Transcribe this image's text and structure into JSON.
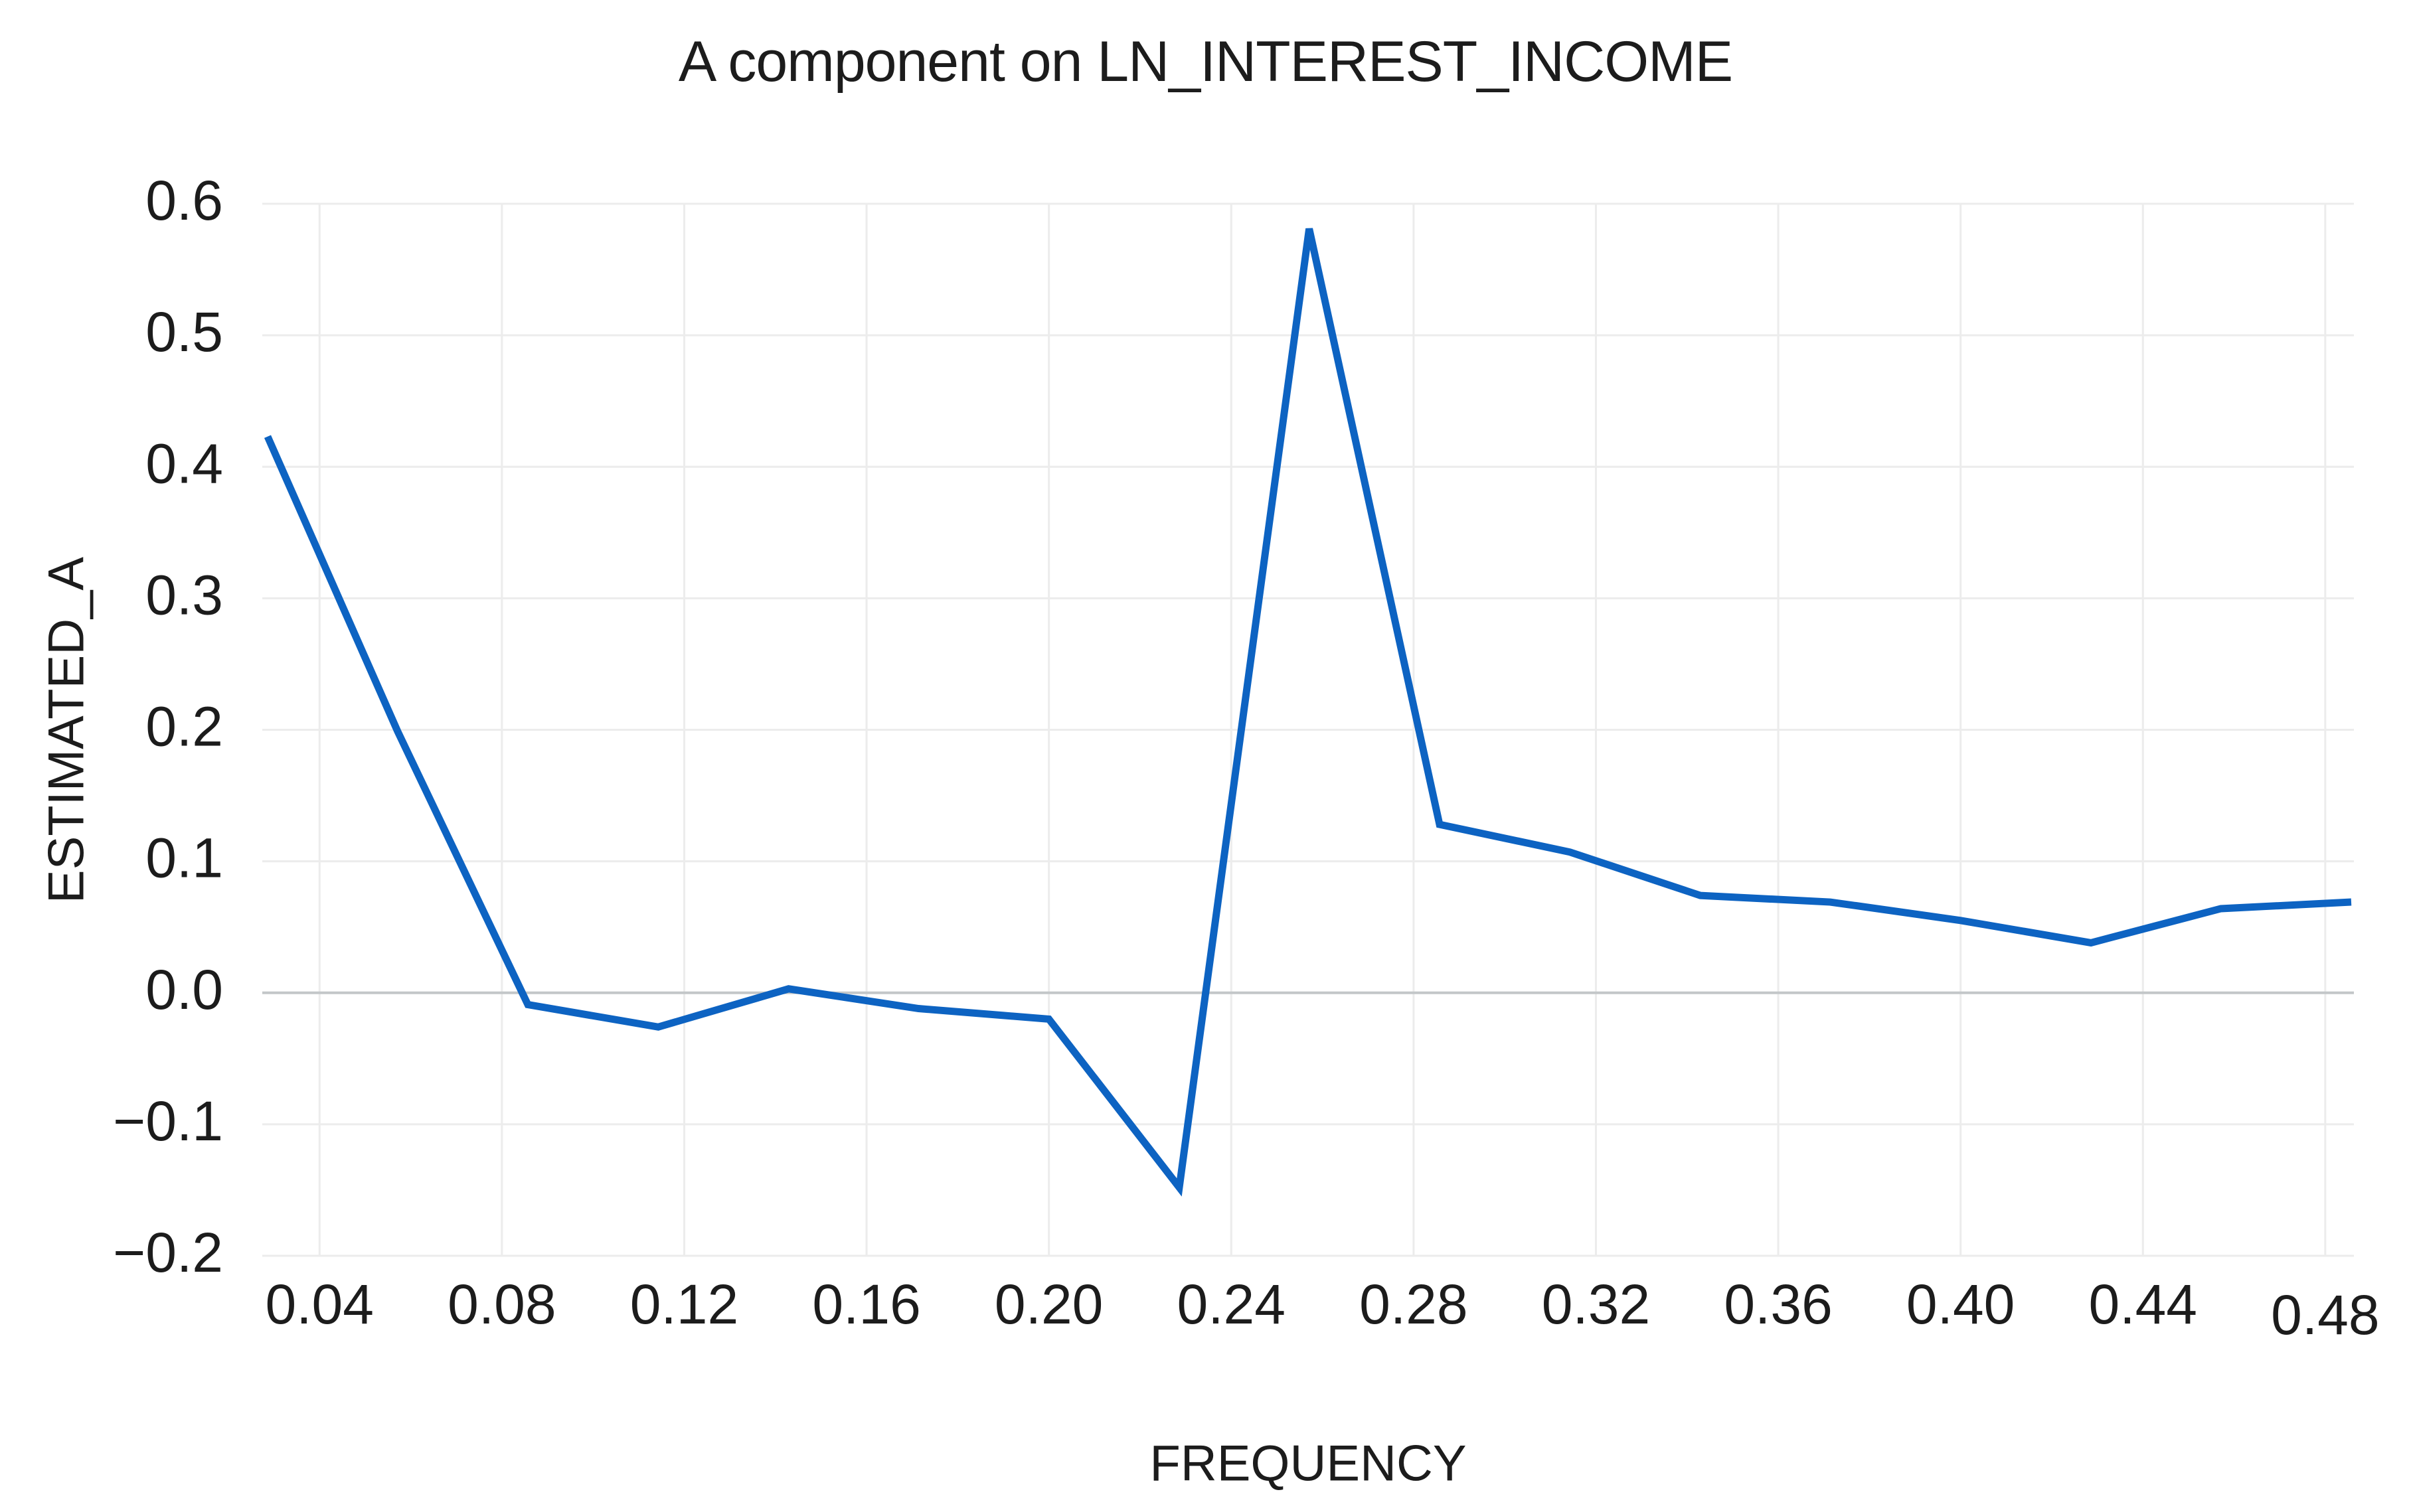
{
  "colors": {
    "line": "#0d63c2",
    "grid": "#ececec",
    "zero_line": "#c3c7c9",
    "text": "#1c1c1c",
    "background": "#ffffff"
  },
  "chart_data": {
    "type": "line",
    "title": "A component on LN_INTEREST_INCOME",
    "xlabel": "FREQUENCY",
    "ylabel": "ESTIMATED_A",
    "series_name": "ESTIMATED_A",
    "x": [
      0.0286,
      0.0571,
      0.0857,
      0.1143,
      0.1429,
      0.1714,
      0.2,
      0.2286,
      0.2571,
      0.2857,
      0.3143,
      0.3429,
      0.3714,
      0.4,
      0.4286,
      0.4571,
      0.4857
    ],
    "y": [
      0.423,
      0.199,
      -0.009,
      -0.026,
      0.003,
      -0.012,
      -0.02,
      -0.148,
      0.581,
      0.128,
      0.107,
      0.074,
      0.069,
      0.055,
      0.038,
      0.064,
      0.069
    ],
    "xlim": [
      0.0286,
      0.4857
    ],
    "ylim": [
      -0.2,
      0.6
    ],
    "x_tick_values": [
      0.04,
      0.08,
      0.12,
      0.16,
      0.2,
      0.24,
      0.28,
      0.32,
      0.36,
      0.4,
      0.44,
      0.48
    ],
    "x_tick_labels": [
      "0.04",
      "0.08",
      "0.12",
      "0.16",
      "0.20",
      "0.24",
      "0.28",
      "0.32",
      "0.36",
      "0.40",
      "0.44",
      "0.48"
    ],
    "y_tick_values": [
      0.6,
      0.5,
      0.4,
      0.3,
      0.2,
      0.1,
      0.0,
      -0.1,
      -0.2
    ],
    "y_tick_labels": [
      "0.6",
      "0.5",
      "0.4",
      "0.3",
      "0.2",
      "0.1",
      "0.0",
      "−0.1",
      "−0.2"
    ],
    "grid": true,
    "legend": false
  }
}
